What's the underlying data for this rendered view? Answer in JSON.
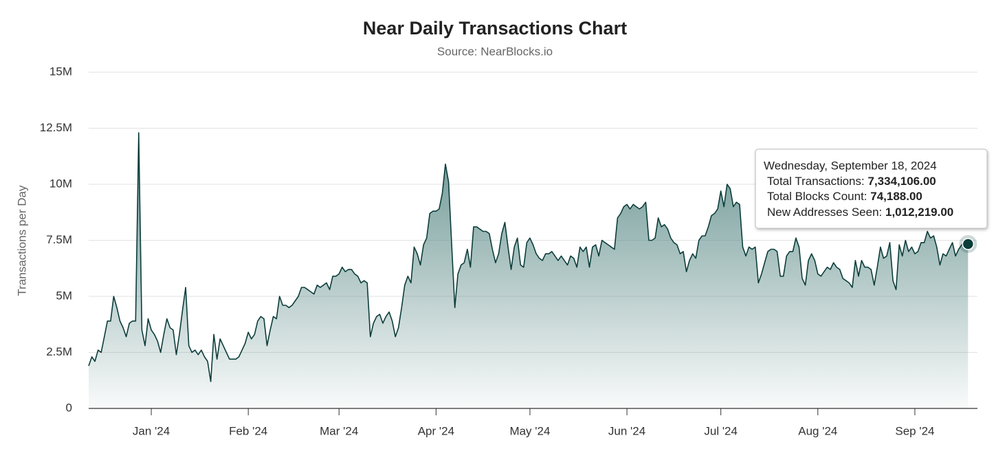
{
  "chart_data": {
    "type": "area",
    "title": "Near Daily Transactions Chart",
    "subtitle": "Source: NearBlocks.io",
    "y_label": "Transactions per Day",
    "color": "#0b3d3a",
    "fill_color": "#5f8d8a",
    "grid": true,
    "xlim": [
      0,
      284
    ],
    "xticks": [
      {
        "value": 20,
        "label": "Jan '24"
      },
      {
        "value": 51,
        "label": "Feb '24"
      },
      {
        "value": 80,
        "label": "Mar '24"
      },
      {
        "value": 111,
        "label": "Apr '24"
      },
      {
        "value": 141,
        "label": "May '24"
      },
      {
        "value": 172,
        "label": "Jun '24"
      },
      {
        "value": 202,
        "label": "Jul '24"
      },
      {
        "value": 233,
        "label": "Aug '24"
      },
      {
        "value": 264,
        "label": "Sep '24"
      }
    ],
    "ylim": [
      0,
      15
    ],
    "yticks": [
      0,
      {
        "value": 2.5,
        "label": "2.5M"
      },
      {
        "value": 5,
        "label": "5M"
      },
      {
        "value": 7.5,
        "label": "7.5M"
      },
      {
        "value": 10,
        "label": "10M"
      },
      {
        "value": 12.5,
        "label": "12.5M"
      },
      {
        "value": 15,
        "label": "15M"
      }
    ],
    "values": [
      1.9,
      2.3,
      2.1,
      2.6,
      2.5,
      3.2,
      3.9,
      3.9,
      5.0,
      4.5,
      3.9,
      3.6,
      3.2,
      3.8,
      3.9,
      3.9,
      12.3,
      3.5,
      2.8,
      4.0,
      3.5,
      3.3,
      3.0,
      2.5,
      3.3,
      4.0,
      3.6,
      3.5,
      2.4,
      3.3,
      4.4,
      5.4,
      2.8,
      2.5,
      2.6,
      2.4,
      2.6,
      2.3,
      2.1,
      1.2,
      3.3,
      2.2,
      3.1,
      2.8,
      2.5,
      2.2,
      2.2,
      2.2,
      2.3,
      2.6,
      2.9,
      3.4,
      3.1,
      3.3,
      3.9,
      4.1,
      4.0,
      2.8,
      3.5,
      4.1,
      4.0,
      5.0,
      4.6,
      4.6,
      4.5,
      4.6,
      4.8,
      5.0,
      5.4,
      5.4,
      5.3,
      5.2,
      5.1,
      5.5,
      5.4,
      5.5,
      5.6,
      5.3,
      5.9,
      5.9,
      6.0,
      6.3,
      6.1,
      6.2,
      6.2,
      6.0,
      5.9,
      5.6,
      5.7,
      5.6,
      3.2,
      3.8,
      4.1,
      4.2,
      3.8,
      4.1,
      4.3,
      3.9,
      3.2,
      3.6,
      4.5,
      5.5,
      5.9,
      5.6,
      7.2,
      6.9,
      6.4,
      7.3,
      7.6,
      8.7,
      8.8,
      8.8,
      8.9,
      9.6,
      10.9,
      10.1,
      7.3,
      4.5,
      6.0,
      6.4,
      6.5,
      7.1,
      6.3,
      8.1,
      8.1,
      8.0,
      7.9,
      7.9,
      7.8,
      7.1,
      6.5,
      6.9,
      7.8,
      8.3,
      7.2,
      6.2,
      7.2,
      7.6,
      6.4,
      6.3,
      7.4,
      7.6,
      7.3,
      6.9,
      6.7,
      6.6,
      6.9,
      6.9,
      7.0,
      6.8,
      6.6,
      6.8,
      6.6,
      6.4,
      6.8,
      6.7,
      6.3,
      7.2,
      7.0,
      7.2,
      6.3,
      7.2,
      7.3,
      6.8,
      7.5,
      7.4,
      7.3,
      7.2,
      7.1,
      8.5,
      8.7,
      9.0,
      9.1,
      8.9,
      9.1,
      9.0,
      8.9,
      9.0,
      9.2,
      7.5,
      7.5,
      7.6,
      8.5,
      8.1,
      8.2,
      8.0,
      7.6,
      7.4,
      7.3,
      6.9,
      7.0,
      6.1,
      6.6,
      6.9,
      6.7,
      7.5,
      7.7,
      7.7,
      8.1,
      8.6,
      8.7,
      8.9,
      9.7,
      9.0,
      10.0,
      9.8,
      9.0,
      9.2,
      9.1,
      7.2,
      6.8,
      7.2,
      7.1,
      7.2,
      5.6,
      6.0,
      6.5,
      7.0,
      7.1,
      7.1,
      7.0,
      5.9,
      5.9,
      6.8,
      7.0,
      7.0,
      7.6,
      7.2,
      5.8,
      5.5,
      6.6,
      6.9,
      6.6,
      6.0,
      5.9,
      6.1,
      6.3,
      6.2,
      6.5,
      6.3,
      6.2,
      5.8,
      5.7,
      5.6,
      5.4,
      6.6,
      5.9,
      6.6,
      6.3,
      6.3,
      6.2,
      5.5,
      6.3,
      7.2,
      6.7,
      6.8,
      7.4,
      5.7,
      5.3,
      7.3,
      6.8,
      7.5,
      7.0,
      7.2,
      6.9,
      7.0,
      7.4,
      7.4,
      7.9,
      7.6,
      7.7,
      7.2,
      6.4,
      6.9,
      6.8,
      7.1,
      7.4,
      6.8,
      7.1,
      7.3,
      7.5,
      7.334106
    ],
    "tooltip": {
      "title": "Wednesday, September 18, 2024",
      "rows": [
        {
          "label": "Total Transactions:",
          "value": "7,334,106.00"
        },
        {
          "label": "Total Blocks Count:",
          "value": "74,188.00"
        },
        {
          "label": "New Addresses Seen:",
          "value": "1,012,219.00"
        }
      ]
    }
  }
}
